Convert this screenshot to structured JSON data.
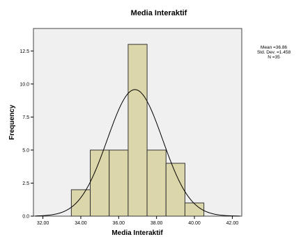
{
  "chart_data": {
    "type": "bar",
    "title": "Media Interaktif",
    "xlabel": "Media Interaktif",
    "ylabel": "Frequency",
    "xlim": [
      31.5,
      42.5
    ],
    "ylim": [
      0,
      14.2
    ],
    "x_ticks": [
      32,
      34,
      36,
      38,
      40,
      42
    ],
    "x_tick_labels": [
      "32.00",
      "34.00",
      "36.00",
      "38.00",
      "40.00",
      "42.00"
    ],
    "y_ticks": [
      0,
      2.5,
      5,
      7.5,
      10,
      12.5
    ],
    "y_tick_labels": [
      "0.0",
      "2.5",
      "5.0",
      "7.5",
      "10.0",
      "12.5"
    ],
    "bins": [
      {
        "x0": 33.5,
        "x1": 34.5,
        "value": 2
      },
      {
        "x0": 34.5,
        "x1": 35.5,
        "value": 5
      },
      {
        "x0": 35.5,
        "x1": 36.5,
        "value": 5
      },
      {
        "x0": 36.5,
        "x1": 37.5,
        "value": 13
      },
      {
        "x0": 37.5,
        "x1": 38.5,
        "value": 5
      },
      {
        "x0": 38.5,
        "x1": 39.5,
        "value": 4
      },
      {
        "x0": 39.5,
        "x1": 40.5,
        "value": 1
      }
    ],
    "normal_curve": {
      "mean": 36.86,
      "sd": 1.458,
      "n": 35,
      "bin_width": 1
    },
    "stats_lines": [
      "Mean =36.86",
      "Std. Dev. =1.458",
      "N =35"
    ],
    "grid": false,
    "colors": {
      "plot_bg": "#f0f0f0",
      "bar_fill": "#dcd7aa",
      "bar_stroke": "#333333",
      "curve": "#000000"
    }
  }
}
